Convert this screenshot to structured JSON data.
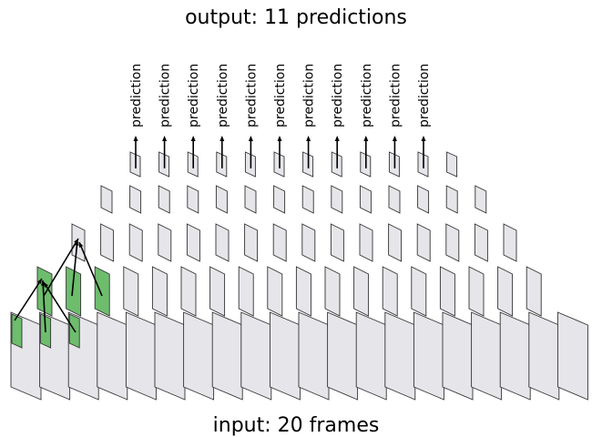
{
  "title": "output: 11 predictions",
  "footer": "input: 20 frames",
  "prediction_label": "prediction",
  "input_frames": 20,
  "outputs": 11,
  "layer_counts": [
    20,
    18,
    16,
    14,
    12,
    11
  ],
  "colors": {
    "frame_fill": "#e6e6ea",
    "highlight_fill": "#6dbd6d",
    "stroke": "#333333"
  }
}
